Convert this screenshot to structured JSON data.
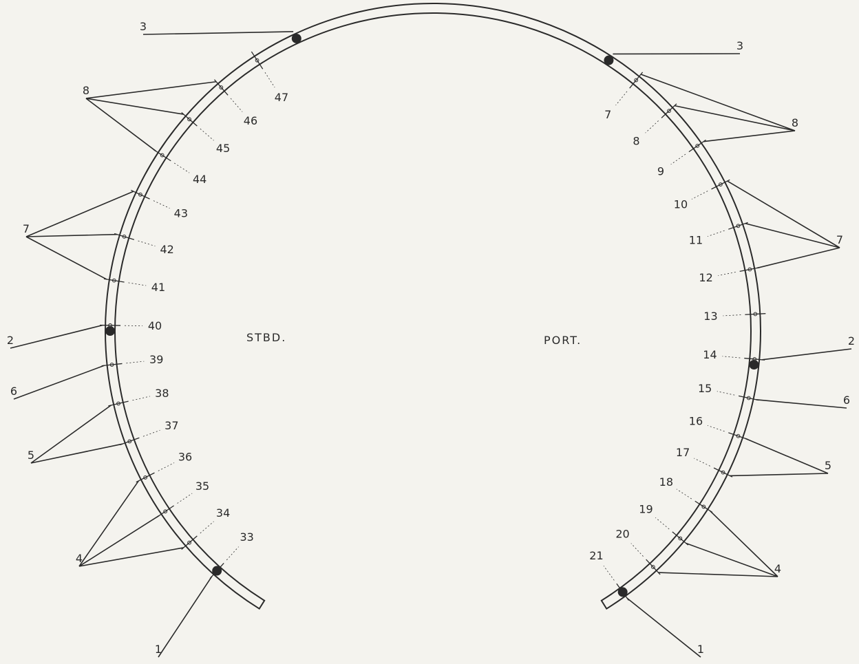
{
  "labels": {
    "stbd": "STBD.",
    "port": "PORT."
  },
  "stations": {
    "stbd": [
      "47",
      "46",
      "45",
      "44",
      "43",
      "42",
      "41",
      "40",
      "39",
      "38",
      "37",
      "36",
      "35",
      "34",
      "33"
    ],
    "port": [
      "7",
      "8",
      "9",
      "10",
      "11",
      "12",
      "13",
      "14",
      "15",
      "16",
      "17",
      "18",
      "19",
      "20",
      "21"
    ]
  },
  "callouts": [
    "1",
    "2",
    "3",
    "4",
    "5",
    "6",
    "7",
    "8"
  ],
  "colors": {
    "ink": "#2a2a2a",
    "paper": "#f4f3ee"
  }
}
